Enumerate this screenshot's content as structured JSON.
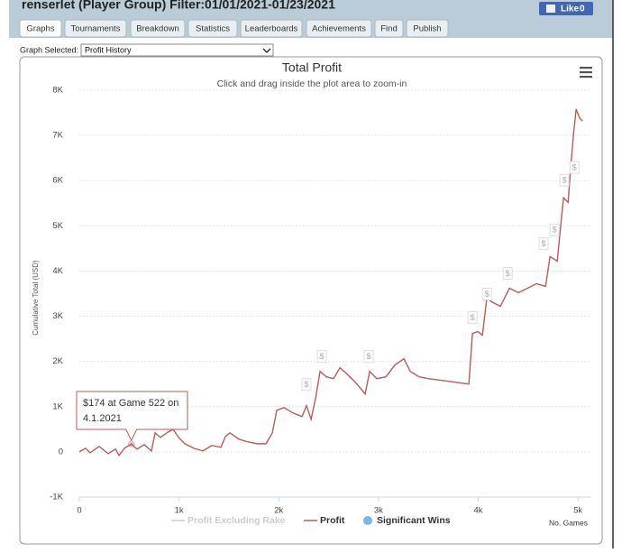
{
  "header": {
    "title": "renserlet (Player Group) Filter:01/01/2021-01/23/2021",
    "like_button": {
      "label": "Like",
      "count": 0
    }
  },
  "tabs": [
    "Graphs",
    "Tournaments",
    "Breakdown",
    "Statistics",
    "Leaderboards",
    "Achievements",
    "Find",
    "Publish"
  ],
  "active_tab": 0,
  "graph_selector": {
    "label": "Graph Selected:",
    "selected": "Profit History"
  },
  "chart_data": {
    "type": "line",
    "title": "Total Profit",
    "subtitle": "Click and drag inside the plot area to zoom-in",
    "y_label": "Cumulative Total (USD)",
    "x_label": "No. Games",
    "xlim": [
      0,
      5125
    ],
    "ylim": [
      -1000,
      8000
    ],
    "xticks": [
      0,
      {
        "value": 1000,
        "label": "1k"
      },
      {
        "value": 2000,
        "label": "2k"
      },
      {
        "value": 3000,
        "label": "3k"
      },
      {
        "value": 4000,
        "label": "4k"
      },
      {
        "value": 5000,
        "label": "5k"
      }
    ],
    "yticks": [
      {
        "value": -1000,
        "label": "-1K"
      },
      0,
      {
        "value": 1000,
        "label": "1K"
      },
      {
        "value": 2000,
        "label": "2K"
      },
      {
        "value": 3000,
        "label": "3K"
      },
      {
        "value": 4000,
        "label": "4K"
      },
      {
        "value": 5000,
        "label": "5K"
      },
      {
        "value": 6000,
        "label": "6K"
      },
      {
        "value": 7000,
        "label": "7K"
      },
      {
        "value": 8000,
        "label": "8K"
      }
    ],
    "grid": true,
    "series": [
      {
        "name": "Profit Excluding Rake",
        "color": "#cccccc",
        "visible": false
      },
      {
        "name": "Profit",
        "color": "#b85c5c",
        "visible": true,
        "x": [
          0,
          63,
          108,
          199,
          289,
          362,
          398,
          452,
          522,
          579,
          651,
          723,
          760,
          814,
          877,
          940,
          995,
          1058,
          1148,
          1239,
          1329,
          1420,
          1465,
          1510,
          1600,
          1691,
          1781,
          1872,
          1935,
          1980,
          2052,
          2143,
          2233,
          2278,
          2324,
          2369,
          2414,
          2477,
          2550,
          2613,
          2685,
          2776,
          2866,
          2911,
          2983,
          3074,
          3164,
          3255,
          3318,
          3408,
          3499,
          3635,
          3770,
          3906,
          3942,
          3996,
          4042,
          4087,
          4132,
          4223,
          4313,
          4403,
          4494,
          4584,
          4675,
          4720,
          4792,
          4855,
          4901,
          4928,
          4955,
          4982,
          5018,
          5045
        ],
        "values": [
          0,
          80,
          -20,
          120,
          -40,
          60,
          -80,
          80,
          174,
          60,
          160,
          20,
          420,
          320,
          420,
          500,
          320,
          180,
          80,
          20,
          140,
          100,
          340,
          420,
          280,
          220,
          180,
          180,
          420,
          920,
          980,
          860,
          780,
          1020,
          720,
          1180,
          1780,
          1660,
          1620,
          1860,
          1720,
          1520,
          1280,
          1780,
          1620,
          1660,
          1920,
          2060,
          1780,
          1660,
          1620,
          1580,
          1540,
          1500,
          2620,
          2660,
          2580,
          3420,
          3320,
          3220,
          3620,
          3520,
          3620,
          3720,
          3660,
          4320,
          4220,
          5620,
          5520,
          6320,
          7020,
          7580,
          7380,
          7320
        ]
      },
      {
        "name": "Significant Wins",
        "color": "#7cb5ec",
        "visible": true,
        "marker_symbol": "$",
        "x": [
          2278,
          2432,
          2902,
          3942,
          4087,
          4295,
          4656,
          4765,
          4864,
          4964
        ],
        "values": [
          1480,
          2100,
          2100,
          2960,
          3480,
          3940,
          4600,
          4900,
          6000,
          6280
        ]
      }
    ],
    "tooltip": {
      "series": 1,
      "index": 8,
      "lines": [
        "$174 at Game 522 on",
        "4.1.2021"
      ]
    }
  }
}
